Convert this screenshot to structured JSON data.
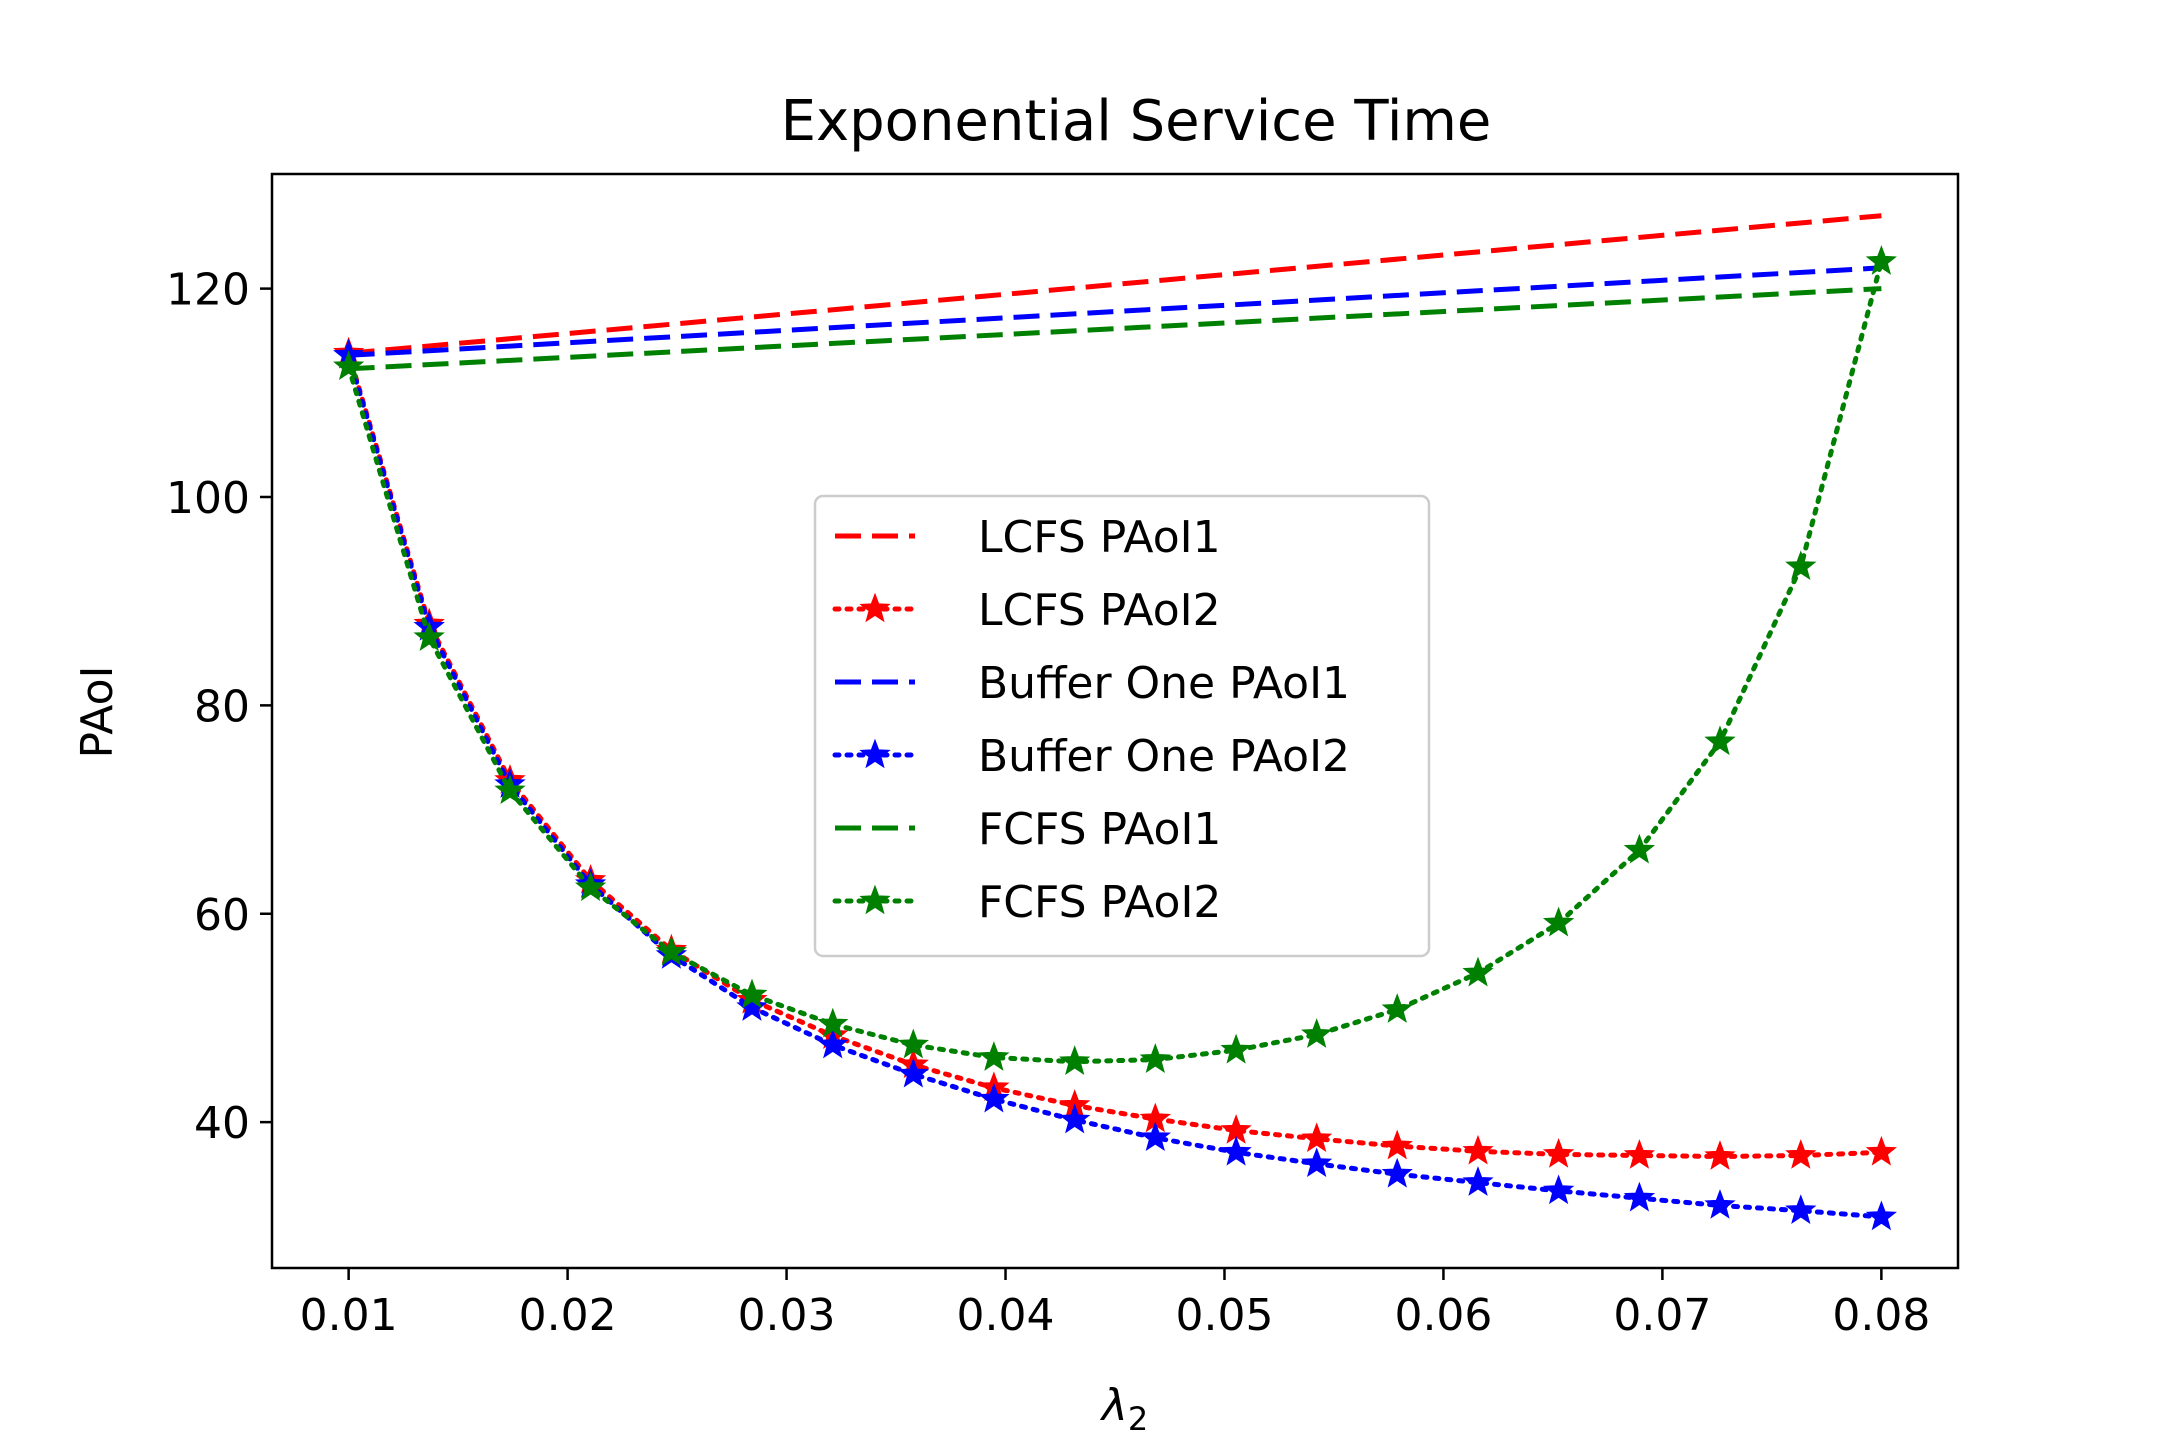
{
  "chart_data": {
    "type": "line",
    "title": "Exponential Service Time",
    "xlabel": "λ",
    "xlabel_sub": "2",
    "ylabel": "PAoI",
    "xlim": [
      0.0065,
      0.0835
    ],
    "ylim": [
      26,
      131
    ],
    "xticks": [
      0.01,
      0.02,
      0.03,
      0.04,
      0.05,
      0.06,
      0.07,
      0.08
    ],
    "xtick_labels": [
      "0.01",
      "0.02",
      "0.03",
      "0.04",
      "0.05",
      "0.06",
      "0.07",
      "0.08"
    ],
    "yticks": [
      40,
      60,
      80,
      100,
      120
    ],
    "ytick_labels": [
      "40",
      "60",
      "80",
      "100",
      "120"
    ],
    "legend_position": "center",
    "series": [
      {
        "name": "LCFS PAoI1",
        "color": "#ff0000",
        "style": "dashed",
        "marker": "none",
        "x": [
          0.01,
          0.08
        ],
        "y": [
          113.8,
          127.0
        ]
      },
      {
        "name": "LCFS PAoI2",
        "color": "#ff0000",
        "style": "dotted",
        "marker": "star",
        "x": [
          0.01,
          0.01368,
          0.01737,
          0.02105,
          0.02474,
          0.02842,
          0.03211,
          0.03579,
          0.03947,
          0.04316,
          0.04684,
          0.05053,
          0.05421,
          0.05789,
          0.06158,
          0.06526,
          0.06895,
          0.07263,
          0.07632,
          0.08
        ],
        "y": [
          113.8,
          87.8,
          72.8,
          63.2,
          56.5,
          51.7,
          48.3,
          45.5,
          43.3,
          41.6,
          40.3,
          39.2,
          38.4,
          37.7,
          37.2,
          36.9,
          36.8,
          36.7,
          36.8,
          37.1
        ]
      },
      {
        "name": "Buffer One PAoI1",
        "color": "#0000ff",
        "style": "dashed",
        "marker": "none",
        "x": [
          0.01,
          0.08
        ],
        "y": [
          113.6,
          122.0
        ]
      },
      {
        "name": "Buffer One PAoI2",
        "color": "#0000ff",
        "style": "dotted",
        "marker": "star",
        "x": [
          0.01,
          0.01368,
          0.01737,
          0.02105,
          0.02474,
          0.02842,
          0.03211,
          0.03579,
          0.03947,
          0.04316,
          0.04684,
          0.05053,
          0.05421,
          0.05789,
          0.06158,
          0.06526,
          0.06895,
          0.07263,
          0.07632,
          0.08
        ],
        "y": [
          113.6,
          87.5,
          72.4,
          62.8,
          56.0,
          51.0,
          47.4,
          44.6,
          42.2,
          40.2,
          38.5,
          37.1,
          36.0,
          35.0,
          34.2,
          33.4,
          32.7,
          32.0,
          31.5,
          30.9
        ]
      },
      {
        "name": "FCFS PAoI1",
        "color": "#008000",
        "style": "dashed",
        "marker": "none",
        "x": [
          0.01,
          0.08
        ],
        "y": [
          112.3,
          120.0
        ]
      },
      {
        "name": "FCFS PAoI2",
        "color": "#008000",
        "style": "dotted",
        "marker": "star",
        "x": [
          0.01,
          0.01368,
          0.01737,
          0.02105,
          0.02474,
          0.02842,
          0.03211,
          0.03579,
          0.03947,
          0.04316,
          0.04684,
          0.05053,
          0.05421,
          0.05789,
          0.06158,
          0.06526,
          0.06895,
          0.07263,
          0.07632,
          0.08
        ],
        "y": [
          112.5,
          86.5,
          71.8,
          62.5,
          56.3,
          52.2,
          49.4,
          47.4,
          46.2,
          45.8,
          46.0,
          46.9,
          48.4,
          50.8,
          54.3,
          59.1,
          66.1,
          76.5,
          93.3,
          122.6
        ]
      }
    ]
  }
}
